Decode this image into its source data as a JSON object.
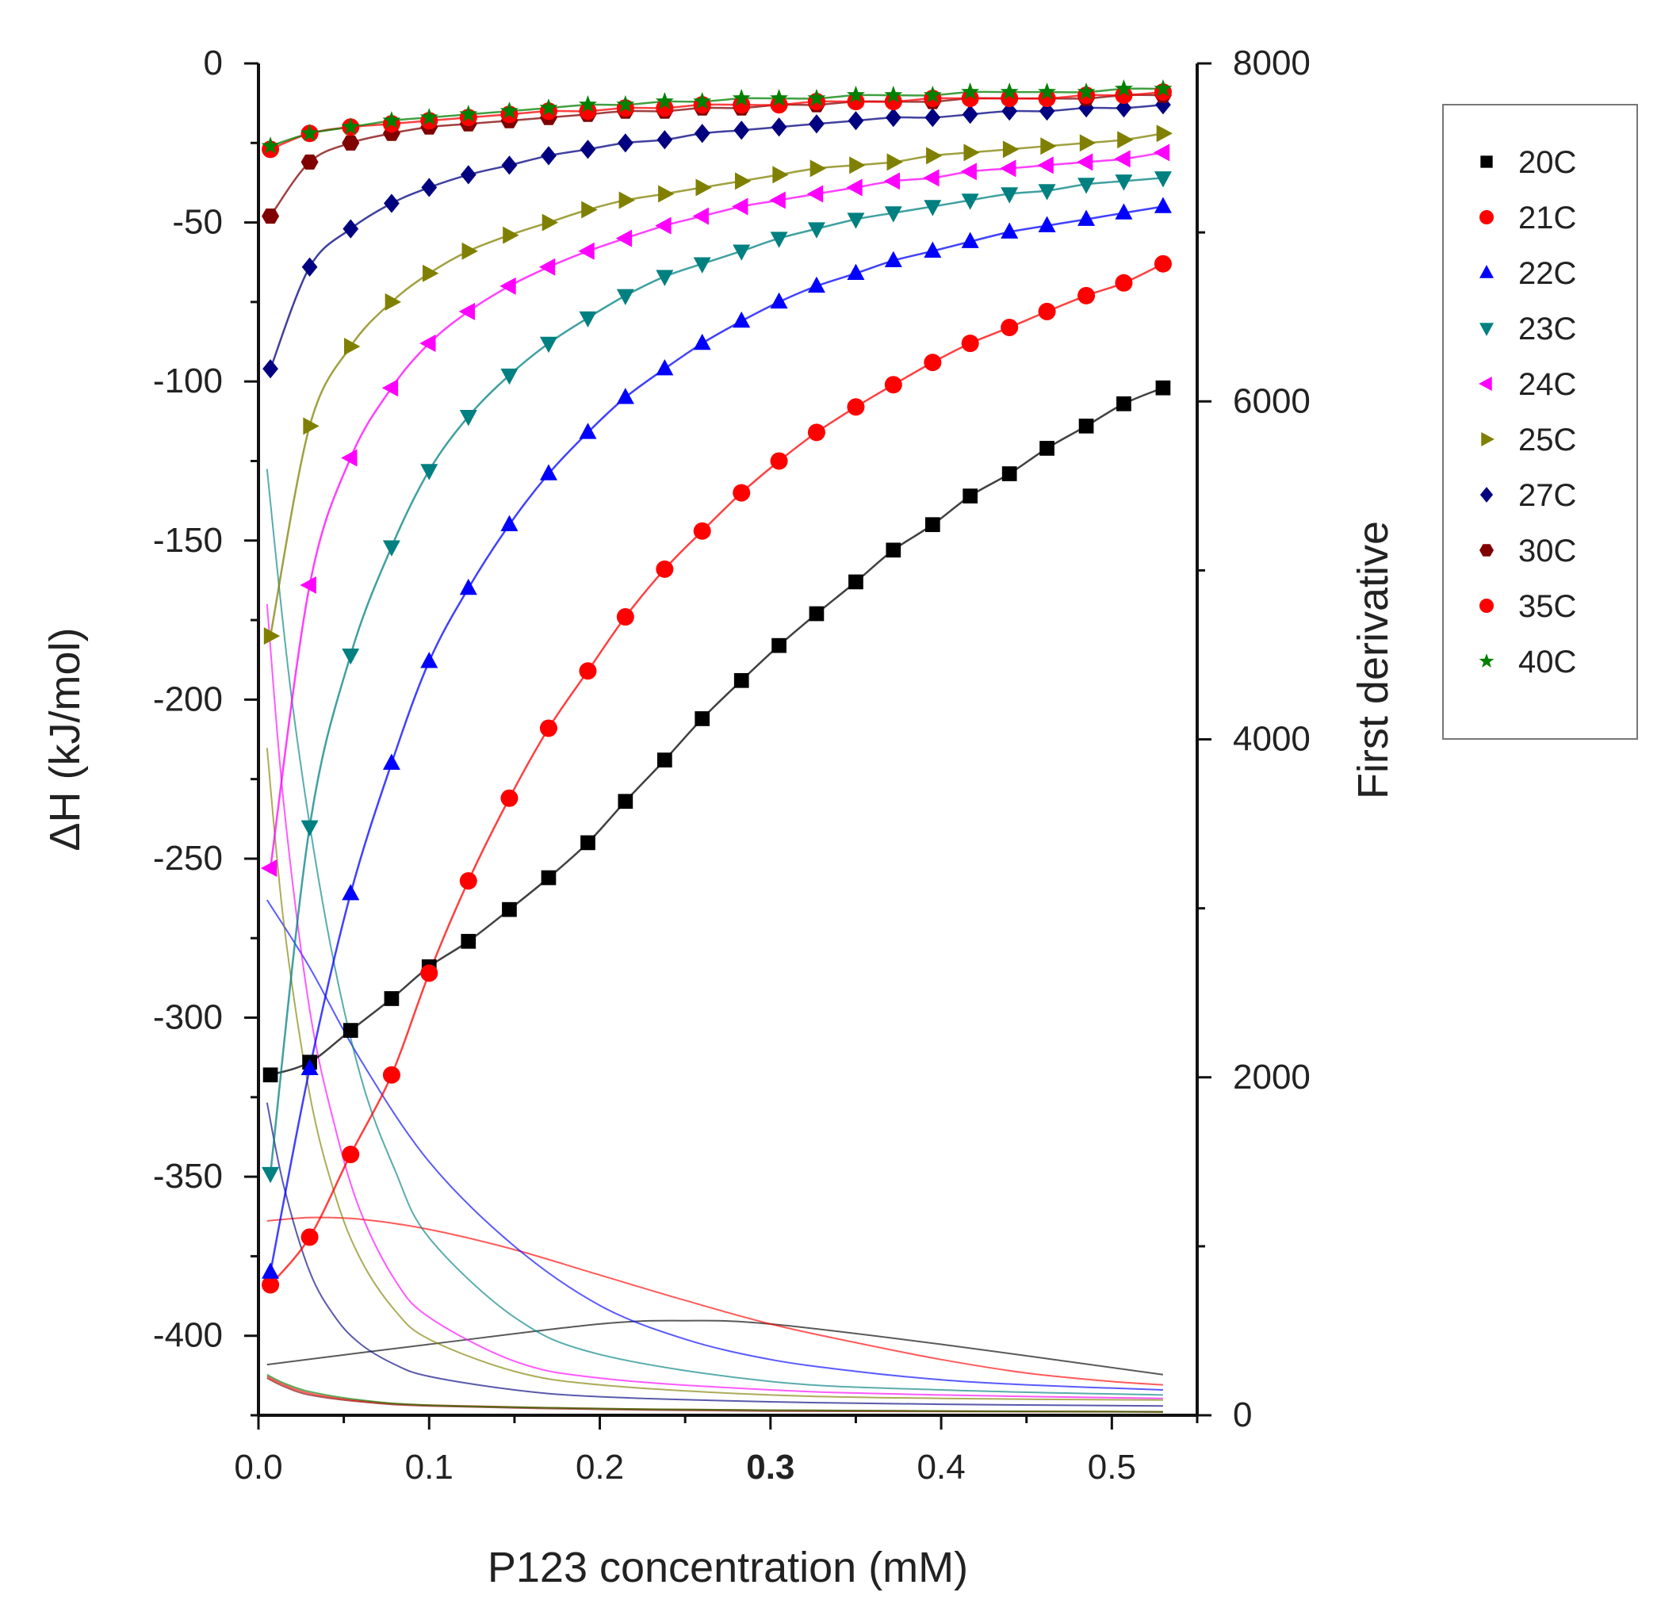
{
  "chart_data": {
    "type": "scatter",
    "xlabel": "P123 concentration (mM)",
    "ylabel": "ΔH (kJ/mol)",
    "y2label": "First derivative",
    "xlim": [
      0.0,
      0.55
    ],
    "ylim": [
      -425,
      0
    ],
    "y2lim": [
      0,
      8000
    ],
    "xticks": [
      "0.0",
      "0.1",
      "0.2",
      "0.3",
      "0.4",
      "0.5"
    ],
    "xtick_values": [
      0.0,
      0.1,
      0.2,
      0.3,
      0.4,
      0.5
    ],
    "yticks": [
      "0",
      "-50",
      "-100",
      "-150",
      "-200",
      "-250",
      "-300",
      "-350",
      "-400"
    ],
    "ytick_values": [
      0,
      -50,
      -100,
      -150,
      -200,
      -250,
      -300,
      -350,
      -400
    ],
    "y2ticks": [
      "0",
      "2000",
      "4000",
      "6000",
      "8000"
    ],
    "y2tick_values": [
      0,
      2000,
      4000,
      6000,
      8000
    ],
    "x": [
      0.007,
      0.03,
      0.054,
      0.078,
      0.1,
      0.123,
      0.147,
      0.17,
      0.193,
      0.215,
      0.238,
      0.26,
      0.283,
      0.305,
      0.327,
      0.35,
      0.372,
      0.395,
      0.417,
      0.44,
      0.462,
      0.485,
      0.507,
      0.53
    ],
    "series": [
      {
        "name": "20C",
        "marker": "square",
        "color": "#000000",
        "values": [
          -318,
          -314,
          -304,
          -294,
          -284,
          -276,
          -266,
          -256,
          -245,
          -232,
          -219,
          -206,
          -194,
          -183,
          -173,
          -163,
          -153,
          -145,
          -136,
          -129,
          -121,
          -114,
          -107,
          -102
        ]
      },
      {
        "name": "21C",
        "marker": "circle",
        "color": "#ff0000",
        "values": [
          -384,
          -369,
          -343,
          -318,
          -286,
          -257,
          -231,
          -209,
          -191,
          -174,
          -159,
          -147,
          -135,
          -125,
          -116,
          -108,
          -101,
          -94,
          -88,
          -83,
          -78,
          -73,
          -69,
          -63
        ]
      },
      {
        "name": "22C",
        "marker": "triangle-up",
        "color": "#0000ff",
        "values": [
          -380,
          -316,
          -261,
          -220,
          -188,
          -165,
          -145,
          -129,
          -116,
          -105,
          -96,
          -88,
          -81,
          -75,
          -70,
          -66,
          -62,
          -59,
          -56,
          -53,
          -51,
          -49,
          -47,
          -45
        ]
      },
      {
        "name": "23C",
        "marker": "triangle-down",
        "color": "#008080",
        "values": [
          -349,
          -240,
          -186,
          -152,
          -128,
          -111,
          -98,
          -88,
          -80,
          -73,
          -67,
          -63,
          -59,
          -55,
          -52,
          -49,
          -47,
          -45,
          -43,
          -41,
          -40,
          -38,
          -37,
          -36
        ]
      },
      {
        "name": "24C",
        "marker": "triangle-left",
        "color": "#ff00ff",
        "values": [
          -253,
          -164,
          -124,
          -102,
          -88,
          -78,
          -70,
          -64,
          -59,
          -55,
          -51,
          -48,
          -45,
          -43,
          -41,
          -39,
          -37,
          -36,
          -34,
          -33,
          -32,
          -31,
          -30,
          -28
        ]
      },
      {
        "name": "25C",
        "marker": "triangle-right",
        "color": "#808000",
        "values": [
          -180,
          -114,
          -89,
          -75,
          -66,
          -59,
          -54,
          -50,
          -46,
          -43,
          -41,
          -39,
          -37,
          -35,
          -33,
          -32,
          -31,
          -29,
          -28,
          -27,
          -26,
          -25,
          -24,
          -22
        ]
      },
      {
        "name": "27C",
        "marker": "diamond",
        "color": "#000080",
        "values": [
          -96,
          -64,
          -52,
          -44,
          -39,
          -35,
          -32,
          -29,
          -27,
          -25,
          -24,
          -22,
          -21,
          -20,
          -19,
          -18,
          -17,
          -17,
          -16,
          -15,
          -15,
          -14,
          -14,
          -13
        ]
      },
      {
        "name": "30C",
        "marker": "hexagon",
        "color": "#800000",
        "values": [
          -48,
          -31,
          -25,
          -22,
          -20,
          -19,
          -18,
          -17,
          -16,
          -15,
          -15,
          -14,
          -14,
          -13,
          -13,
          -12,
          -12,
          -12,
          -11,
          -11,
          -11,
          -11,
          -10,
          -10
        ]
      },
      {
        "name": "35C",
        "marker": "circle",
        "color": "#ff0000",
        "values": [
          -27,
          -22,
          -20,
          -19,
          -18,
          -17,
          -16,
          -15,
          -15,
          -14,
          -14,
          -13,
          -13,
          -13,
          -12,
          -12,
          -12,
          -11,
          -11,
          -11,
          -11,
          -10,
          -10,
          -9
        ]
      },
      {
        "name": "40C",
        "marker": "star",
        "color": "#008000",
        "values": [
          -26,
          -22,
          -20,
          -18,
          -17,
          -16,
          -15,
          -14,
          -13,
          -13,
          -12,
          -12,
          -11,
          -11,
          -11,
          -10,
          -10,
          -10,
          -9,
          -9,
          -9,
          -9,
          -8,
          -8
        ]
      }
    ],
    "derivative_curves": [
      {
        "name": "20C",
        "color": "#000000",
        "x": [
          0.005,
          0.1,
          0.2,
          0.25,
          0.3,
          0.4,
          0.53
        ],
        "values": [
          300,
          420,
          540,
          560,
          540,
          420,
          240
        ]
      },
      {
        "name": "21C",
        "color": "#ff0000",
        "x": [
          0.005,
          0.03,
          0.06,
          0.1,
          0.15,
          0.2,
          0.25,
          0.3,
          0.35,
          0.4,
          0.45,
          0.5,
          0.53
        ],
        "values": [
          1150,
          1170,
          1160,
          1100,
          980,
          830,
          680,
          540,
          430,
          330,
          250,
          200,
          180
        ]
      },
      {
        "name": "22C",
        "color": "#0000ff",
        "x": [
          0.005,
          0.03,
          0.06,
          0.1,
          0.15,
          0.2,
          0.25,
          0.3,
          0.35,
          0.4,
          0.45,
          0.53
        ],
        "values": [
          3050,
          2650,
          2100,
          1500,
          1000,
          650,
          450,
          330,
          260,
          210,
          180,
          150
        ]
      },
      {
        "name": "23C",
        "color": "#008080",
        "x": [
          0.005,
          0.02,
          0.04,
          0.06,
          0.08,
          0.1,
          0.15,
          0.2,
          0.3,
          0.4,
          0.53
        ],
        "values": [
          5600,
          4200,
          2900,
          2000,
          1450,
          1050,
          580,
          360,
          200,
          150,
          120
        ]
      },
      {
        "name": "24C",
        "color": "#ff00ff",
        "x": [
          0.005,
          0.015,
          0.03,
          0.045,
          0.06,
          0.08,
          0.1,
          0.15,
          0.2,
          0.3,
          0.4,
          0.53
        ],
        "values": [
          4800,
          3600,
          2400,
          1700,
          1200,
          800,
          580,
          320,
          220,
          150,
          120,
          100
        ]
      },
      {
        "name": "25C",
        "color": "#808000",
        "x": [
          0.005,
          0.015,
          0.03,
          0.045,
          0.06,
          0.08,
          0.1,
          0.15,
          0.2,
          0.3,
          0.4,
          0.53
        ],
        "values": [
          3950,
          2900,
          1900,
          1300,
          920,
          620,
          450,
          260,
          180,
          120,
          100,
          90
        ]
      },
      {
        "name": "27C",
        "color": "#000080",
        "x": [
          0.005,
          0.015,
          0.03,
          0.045,
          0.06,
          0.08,
          0.1,
          0.15,
          0.2,
          0.3,
          0.4,
          0.53
        ],
        "values": [
          1850,
          1350,
          850,
          580,
          420,
          300,
          230,
          150,
          110,
          80,
          65,
          55
        ]
      },
      {
        "name": "30C",
        "color": "#800000",
        "x": [
          0.005,
          0.015,
          0.03,
          0.06,
          0.1,
          0.2,
          0.3,
          0.53
        ],
        "values": [
          220,
          170,
          120,
          80,
          55,
          35,
          25,
          20
        ]
      },
      {
        "name": "35C",
        "color": "#ff0000",
        "x": [
          0.005,
          0.015,
          0.03,
          0.06,
          0.1,
          0.2,
          0.3,
          0.53
        ],
        "values": [
          230,
          180,
          130,
          85,
          60,
          40,
          30,
          20
        ]
      },
      {
        "name": "40C",
        "color": "#008000",
        "x": [
          0.005,
          0.015,
          0.03,
          0.06,
          0.1,
          0.2,
          0.3,
          0.53
        ],
        "values": [
          240,
          190,
          140,
          90,
          60,
          40,
          30,
          20
        ]
      }
    ],
    "legend": {
      "placement": "right",
      "entries": [
        "20C",
        "21C",
        "22C",
        "23C",
        "24C",
        "25C",
        "27C",
        "30C",
        "35C",
        "40C"
      ]
    }
  }
}
